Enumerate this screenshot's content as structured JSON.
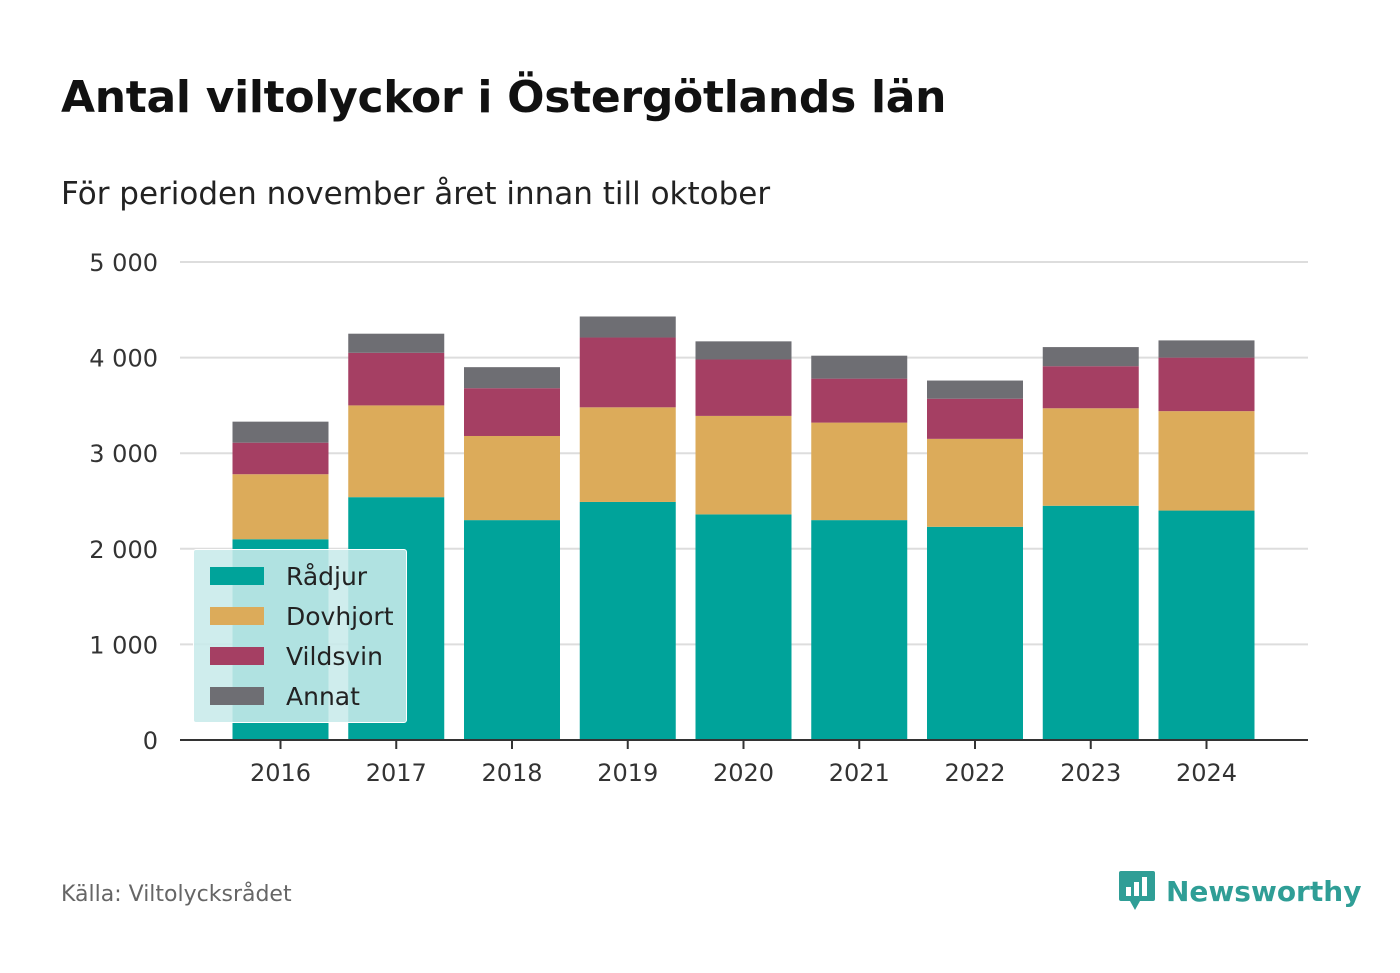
{
  "title": "Antal viltolyckor i Östergötlands län",
  "subtitle": "För perioden november året innan till oktober",
  "source": "Källa: Viltolycksrådet",
  "brand": {
    "name": "Newsworthy",
    "icon": "newsworthy-logo-icon",
    "color": "#2f9e96"
  },
  "chart_data": {
    "type": "bar",
    "stacked": true,
    "categories": [
      "2016",
      "2017",
      "2018",
      "2019",
      "2020",
      "2021",
      "2022",
      "2023",
      "2024"
    ],
    "series": [
      {
        "name": "Rådjur",
        "color": "#00a39a",
        "values": [
          2100,
          2540,
          2300,
          2490,
          2360,
          2300,
          2230,
          2450,
          2400
        ]
      },
      {
        "name": "Dovhjort",
        "color": "#dcab5a",
        "values": [
          680,
          960,
          880,
          990,
          1030,
          1020,
          920,
          1020,
          1040
        ]
      },
      {
        "name": "Vildsvin",
        "color": "#a53f63",
        "values": [
          330,
          550,
          500,
          730,
          590,
          460,
          420,
          440,
          560
        ]
      },
      {
        "name": "Annat",
        "color": "#6e6e73",
        "values": [
          220,
          200,
          220,
          220,
          190,
          240,
          190,
          200,
          180
        ]
      }
    ],
    "ylim": [
      0,
      5000
    ],
    "yticks": [
      0,
      1000,
      2000,
      3000,
      4000,
      5000
    ],
    "ytick_labels": [
      "0",
      "1 000",
      "2 000",
      "3 000",
      "4 000",
      "5 000"
    ],
    "grid": true,
    "legend_position": "bottom-left"
  }
}
